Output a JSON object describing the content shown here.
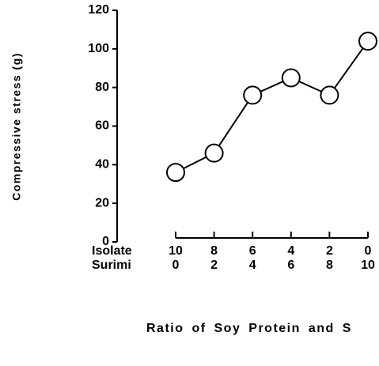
{
  "chart_data": {
    "type": "line",
    "ylabel": "Compressive stress (g)",
    "xlabel": "Ratio of Soy Protein and S",
    "row_labels": [
      "Isolate",
      "Surimi"
    ],
    "isolate": [
      10,
      8,
      6,
      4,
      2,
      0
    ],
    "surimi": [
      0,
      2,
      4,
      6,
      8,
      10
    ],
    "values": [
      36,
      46,
      76,
      85,
      76,
      104
    ],
    "color": "#000000",
    "ylim": [
      0,
      120
    ],
    "yticks": [
      0,
      20,
      40,
      60,
      80,
      100,
      120
    ]
  }
}
